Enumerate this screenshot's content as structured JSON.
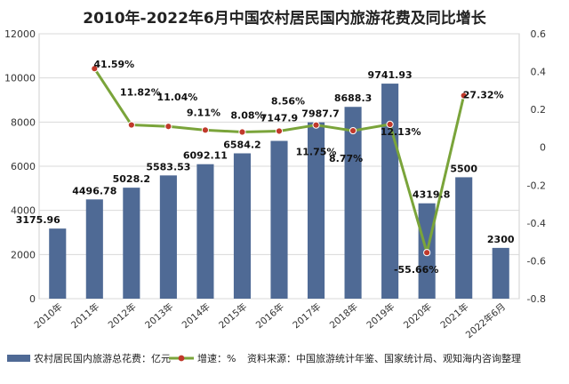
{
  "chart_data": {
    "type": "bar",
    "title": "2010年-2022年6月中国农村居民国内旅游花费及同比增长",
    "categories": [
      "2010年",
      "2011年",
      "2012年",
      "2013年",
      "2014年",
      "2015年",
      "2016年",
      "2017年",
      "2018年",
      "2019年",
      "2020年",
      "2021年",
      "2022年6月"
    ],
    "series": [
      {
        "name": "农村居民国内旅游总花费：亿元",
        "type": "bar",
        "axis": "left",
        "color": "#4f6a95",
        "values": [
          3175.96,
          4496.78,
          5028.2,
          5583.53,
          6092.11,
          6584.2,
          7147.9,
          7987.7,
          8688.3,
          9741.93,
          4319.8,
          5500,
          2300
        ],
        "labels": [
          "3175.96",
          "4496.78",
          "5028.2",
          "5583.53",
          "6092.11",
          "6584.2",
          "7147.9",
          "7987.7",
          "8688.3",
          "9741.93",
          "4319.8",
          "5500",
          "2300"
        ]
      },
      {
        "name": "增速：%",
        "type": "line",
        "axis": "right",
        "color": "#7aa43a",
        "marker_color": "#c0392b",
        "values": [
          null,
          0.4159,
          0.1182,
          0.1104,
          0.0911,
          0.0808,
          0.0856,
          0.1175,
          0.0877,
          0.1213,
          -0.5566,
          0.2732,
          null
        ],
        "labels": [
          null,
          "41.59%",
          "11.82%",
          "11.04%",
          "9.11%",
          "8.08%",
          "8.56%",
          "11.75%",
          "8.77%",
          "12.13%",
          "-55.66%",
          "27.32%",
          null
        ]
      }
    ],
    "y_left": {
      "min": 0,
      "max": 12000,
      "step": 2000,
      "ticks": [
        "0",
        "2000",
        "4000",
        "6000",
        "8000",
        "10000",
        "12000"
      ]
    },
    "y_right": {
      "min": -0.8,
      "max": 0.6,
      "step": 0.2,
      "ticks": [
        "-0.8",
        "-0.6",
        "-0.4",
        "-0.2",
        "0",
        "0.2",
        "0.4",
        "0.6"
      ]
    },
    "grid": true,
    "legend_position": "bottom",
    "source_note": "资料来源：中国旅游统计年鉴、国家统计局、观知海内咨询整理"
  }
}
